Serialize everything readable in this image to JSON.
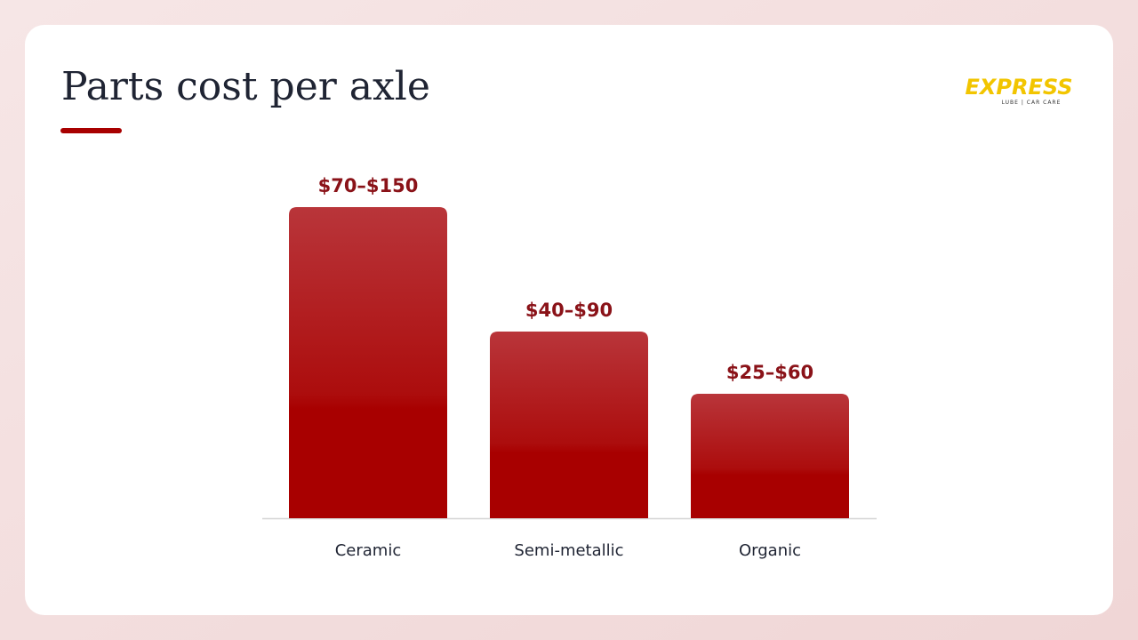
{
  "header": {
    "title": "Parts cost per axle"
  },
  "logo": {
    "name": "EXPRESS",
    "tagline": "LUBE | CAR CARE"
  },
  "chart_data": {
    "type": "bar",
    "categories": [
      "Ceramic",
      "Semi-metallic",
      "Organic"
    ],
    "low": [
      70,
      40,
      25
    ],
    "values": [
      150,
      90,
      60
    ],
    "value_labels": [
      "$70–$150",
      "$40–$90",
      "$25–$60"
    ],
    "color": "#a80000",
    "ylim": [
      0,
      150
    ]
  }
}
